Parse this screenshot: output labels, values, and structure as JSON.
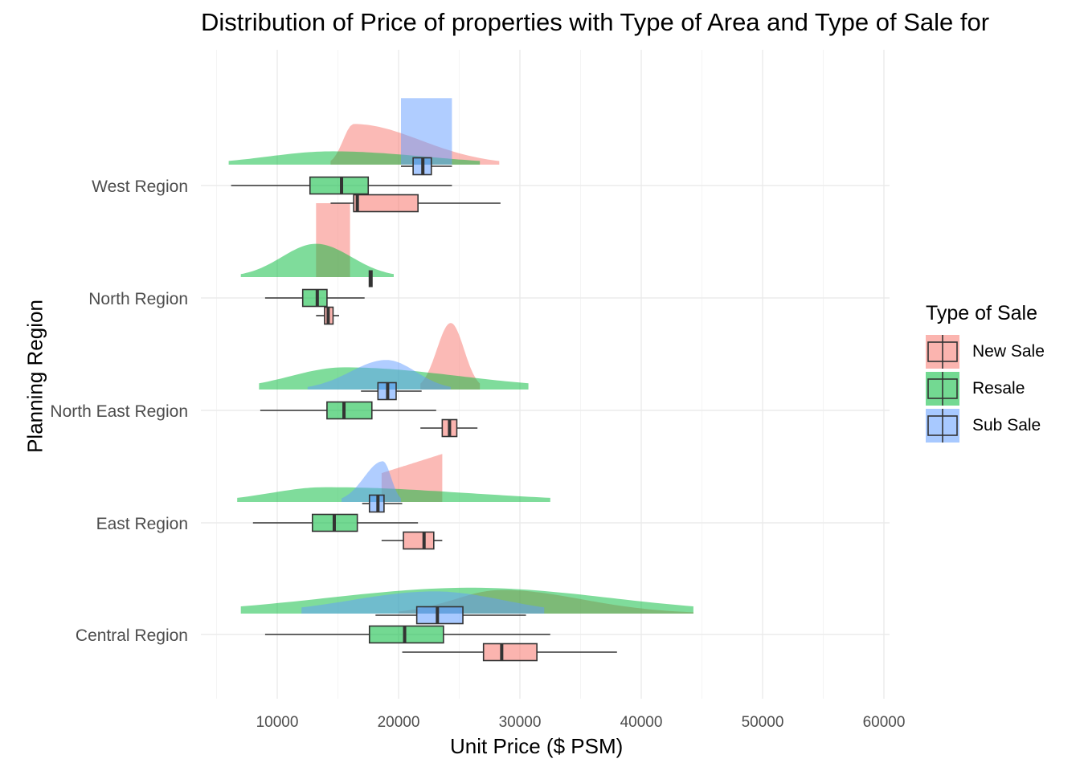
{
  "chart_data": {
    "type": "raincloud",
    "title": "Distribution of Price of properties with Type of Area and Type of Sale for",
    "xlabel": "Unit Price ($ PSM)",
    "ylabel": "Planning Region",
    "xlim": [
      5000,
      60500
    ],
    "xticks": [
      10000,
      20000,
      30000,
      40000,
      50000,
      60000
    ],
    "xtick_labels": [
      "10000",
      "20000",
      "30000",
      "40000",
      "50000",
      "60000"
    ],
    "grid": true,
    "legend": {
      "title": "Type of Sale",
      "placement": "right"
    },
    "categories": [
      "Central Region",
      "East Region",
      "North East Region",
      "North Region",
      "West Region"
    ],
    "series": [
      {
        "name": "New Sale",
        "color": "#F8766D",
        "boxes": [
          {
            "region": "Central Region",
            "whisker_low": 20300,
            "q1": 27000,
            "median": 28500,
            "q3": 31400,
            "whisker_high": 38000
          },
          {
            "region": "East Region",
            "whisker_low": 18600,
            "q1": 20400,
            "median": 22100,
            "q3": 22900,
            "whisker_high": 23600
          },
          {
            "region": "North East Region",
            "whisker_low": 21800,
            "q1": 23600,
            "median": 24200,
            "q3": 24800,
            "whisker_high": 26500
          },
          {
            "region": "North Region",
            "whisker_low": 13200,
            "q1": 13900,
            "median": 14200,
            "q3": 14600,
            "whisker_high": 15100
          },
          {
            "region": "West Region",
            "whisker_low": 14400,
            "q1": 16300,
            "median": 16600,
            "q3": 21600,
            "whisker_high": 28400
          }
        ],
        "densities": [
          {
            "region": "Central Region",
            "min": 20000,
            "max": 44300,
            "mode": 28500,
            "height": 0.32,
            "shape": "skew-right"
          },
          {
            "region": "East Region",
            "min": 18600,
            "max": 23600,
            "mode": 23000,
            "height": 0.65,
            "shape": "ramp"
          },
          {
            "region": "North East Region",
            "min": 21800,
            "max": 26700,
            "mode": 24300,
            "height": 0.9,
            "shape": "peak"
          },
          {
            "region": "North Region",
            "min": 13200,
            "max": 16000,
            "mode": 14000,
            "height": 1.0,
            "shape": "flat"
          },
          {
            "region": "West Region",
            "min": 14400,
            "max": 28300,
            "mode": 16300,
            "height": 0.55,
            "shape": "peak"
          }
        ]
      },
      {
        "name": "Resale",
        "color": "#00BA38",
        "boxes": [
          {
            "region": "Central Region",
            "whisker_low": 9000,
            "q1": 17600,
            "median": 20500,
            "q3": 23700,
            "whisker_high": 32500
          },
          {
            "region": "East Region",
            "whisker_low": 8000,
            "q1": 12900,
            "median": 14700,
            "q3": 16600,
            "whisker_high": 21600
          },
          {
            "region": "North East Region",
            "whisker_low": 8600,
            "q1": 14100,
            "median": 15500,
            "q3": 17800,
            "whisker_high": 23100
          },
          {
            "region": "North Region",
            "whisker_low": 9000,
            "q1": 12100,
            "median": 13300,
            "q3": 14100,
            "whisker_high": 17200
          },
          {
            "region": "West Region",
            "whisker_low": 6200,
            "q1": 12700,
            "median": 15300,
            "q3": 17500,
            "whisker_high": 24400
          }
        ],
        "densities": [
          {
            "region": "Central Region",
            "min": 7000,
            "max": 44300,
            "mode": 26000,
            "height": 0.35,
            "shape": "wide"
          },
          {
            "region": "East Region",
            "min": 6700,
            "max": 32500,
            "mode": 14000,
            "height": 0.2,
            "shape": "wide"
          },
          {
            "region": "North East Region",
            "min": 8500,
            "max": 30700,
            "mode": 15500,
            "height": 0.3,
            "shape": "wide"
          },
          {
            "region": "North Region",
            "min": 7000,
            "max": 19600,
            "mode": 13200,
            "height": 0.45,
            "shape": "peak"
          },
          {
            "region": "West Region",
            "min": 6000,
            "max": 26700,
            "mode": 14500,
            "height": 0.18,
            "shape": "wide"
          }
        ]
      },
      {
        "name": "Sub Sale",
        "color": "#619CFF",
        "boxes": [
          {
            "region": "Central Region",
            "whisker_low": 18100,
            "q1": 21500,
            "median": 23200,
            "q3": 25300,
            "whisker_high": 30500
          },
          {
            "region": "East Region",
            "whisker_low": 17000,
            "q1": 17600,
            "median": 18300,
            "q3": 18800,
            "whisker_high": 20300
          },
          {
            "region": "North East Region",
            "whisker_low": 16900,
            "q1": 18300,
            "median": 19100,
            "q3": 19800,
            "whisker_high": 21900
          },
          {
            "region": "North Region",
            "whisker_low": 17700,
            "q1": 17700,
            "median": 17700,
            "q3": 17700,
            "whisker_high": 17700
          },
          {
            "region": "West Region",
            "whisker_low": 20200,
            "q1": 21200,
            "median": 22000,
            "q3": 22700,
            "whisker_high": 24400
          }
        ],
        "densities": [
          {
            "region": "Central Region",
            "min": 12000,
            "max": 32000,
            "mode": 23000,
            "height": 0.3,
            "shape": "wide"
          },
          {
            "region": "East Region",
            "min": 15300,
            "max": 20200,
            "mode": 18700,
            "height": 0.55,
            "shape": "peak"
          },
          {
            "region": "North East Region",
            "min": 12500,
            "max": 24300,
            "mode": 19000,
            "height": 0.4,
            "shape": "peak"
          },
          {
            "region": "West Region",
            "min": 20200,
            "max": 24400,
            "mode": 22000,
            "height": 0.9,
            "shape": "flat"
          }
        ]
      }
    ]
  }
}
